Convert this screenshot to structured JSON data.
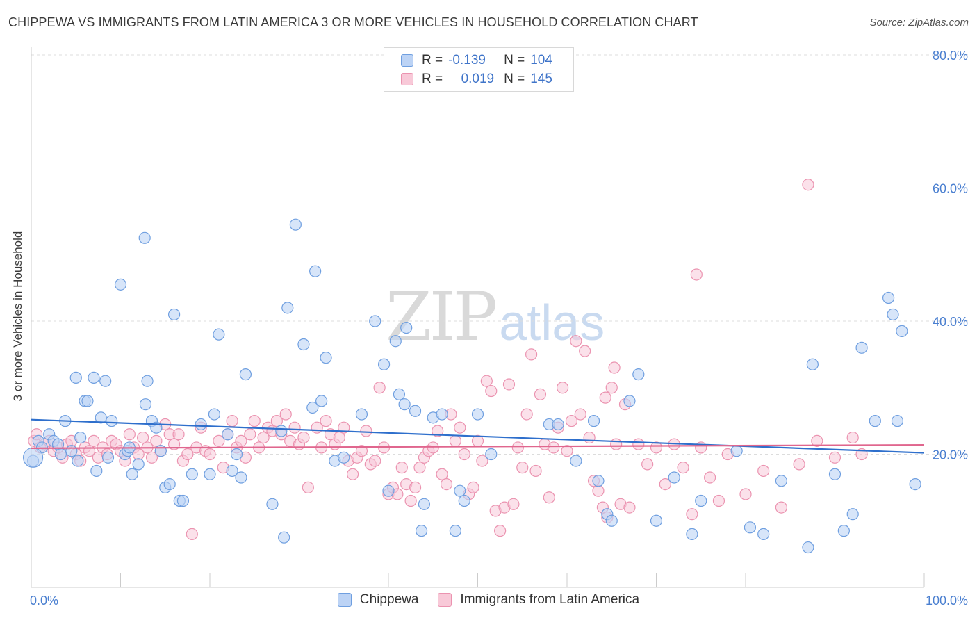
{
  "header": {
    "title": "CHIPPEWA VS IMMIGRANTS FROM LATIN AMERICA 3 OR MORE VEHICLES IN HOUSEHOLD CORRELATION CHART",
    "source": "Source: ZipAtlas.com"
  },
  "watermark": {
    "part1": "ZIP",
    "part2": "atlas"
  },
  "legend": {
    "rows": [
      {
        "r_label": "R =",
        "r_value": "-0.139",
        "n_label": "N =",
        "n_value": "104"
      },
      {
        "r_label": "R =",
        "r_value": "0.019",
        "n_label": "N =",
        "n_value": "145"
      }
    ]
  },
  "bottom_legend": {
    "items": [
      "Chippewa",
      "Immigrants from Latin America"
    ]
  },
  "colors": {
    "series_a_fill": "#bcd3f5",
    "series_a_stroke": "#6f9fe0",
    "series_a_line": "#2e6fcc",
    "series_b_fill": "#f8c9d8",
    "series_b_stroke": "#eb93b0",
    "series_b_line": "#e0668e",
    "tick": "#4a7fd0",
    "grid": "#dcdcdc"
  },
  "chart_data": {
    "type": "scatter",
    "title": "CHIPPEWA VS IMMIGRANTS FROM LATIN AMERICA 3 OR MORE VEHICLES IN HOUSEHOLD CORRELATION CHART",
    "xlabel": "",
    "ylabel": "3 or more Vehicles in Household",
    "xlim": [
      0,
      100
    ],
    "ylim": [
      0,
      80
    ],
    "x_tick_labels": [
      "0.0%",
      "100.0%"
    ],
    "y_ticks": [
      20,
      40,
      60,
      80
    ],
    "y_tick_labels": [
      "20.0%",
      "40.0%",
      "60.0%",
      "80.0%"
    ],
    "grid": "horizontal dashed",
    "legend_position": "top-center",
    "series": [
      {
        "name": "Chippewa",
        "trend": {
          "x": [
            0,
            100
          ],
          "y": [
            25.2,
            20.2
          ]
        },
        "points": [
          [
            0.2,
            19
          ],
          [
            0.8,
            22
          ],
          [
            1.2,
            21
          ],
          [
            2,
            23
          ],
          [
            2.5,
            22
          ],
          [
            3,
            21.5
          ],
          [
            3.3,
            20
          ],
          [
            4.5,
            20.5
          ],
          [
            5.2,
            19
          ],
          [
            3.8,
            25
          ],
          [
            5,
            31.5
          ],
          [
            5.5,
            22.5
          ],
          [
            6,
            28
          ],
          [
            6.3,
            28
          ],
          [
            7,
            31.5
          ],
          [
            7.3,
            17.5
          ],
          [
            7.8,
            25.5
          ],
          [
            8.3,
            31
          ],
          [
            8.6,
            19.5
          ],
          [
            9,
            25
          ],
          [
            10,
            45.5
          ],
          [
            10.5,
            20
          ],
          [
            10.8,
            20.5
          ],
          [
            11,
            21
          ],
          [
            11.3,
            17
          ],
          [
            12,
            18.5
          ],
          [
            12.7,
            52.5
          ],
          [
            12.8,
            27.5
          ],
          [
            13,
            31
          ],
          [
            13.5,
            25
          ],
          [
            14,
            24
          ],
          [
            14.5,
            20.5
          ],
          [
            15,
            15
          ],
          [
            15.5,
            15.5
          ],
          [
            16,
            41
          ],
          [
            16.6,
            13
          ],
          [
            17,
            13
          ],
          [
            18,
            17
          ],
          [
            19,
            24.5
          ],
          [
            20,
            17
          ],
          [
            20.5,
            26
          ],
          [
            21,
            38
          ],
          [
            22,
            23
          ],
          [
            22.5,
            17.5
          ],
          [
            23,
            20
          ],
          [
            23.5,
            16.5
          ],
          [
            24,
            32
          ],
          [
            27,
            12.5
          ],
          [
            28,
            23.5
          ],
          [
            28.3,
            7.5
          ],
          [
            28.7,
            42
          ],
          [
            29.6,
            54.5
          ],
          [
            30.5,
            36.5
          ],
          [
            31.5,
            27
          ],
          [
            31.8,
            47.5
          ],
          [
            32.5,
            28
          ],
          [
            33,
            34.5
          ],
          [
            34,
            19
          ],
          [
            35,
            19.5
          ],
          [
            37,
            26
          ],
          [
            38.5,
            40
          ],
          [
            39.5,
            33.5
          ],
          [
            40,
            14.5
          ],
          [
            40.8,
            37
          ],
          [
            41.2,
            29
          ],
          [
            41.8,
            27.5
          ],
          [
            42,
            39
          ],
          [
            43,
            26.5
          ],
          [
            43.7,
            8.5
          ],
          [
            44,
            12.5
          ],
          [
            45,
            25.5
          ],
          [
            46,
            26
          ],
          [
            47.5,
            8.5
          ],
          [
            48,
            14.5
          ],
          [
            48.5,
            13
          ],
          [
            50,
            26
          ],
          [
            51.5,
            20
          ],
          [
            58,
            24.5
          ],
          [
            59,
            24.5
          ],
          [
            61,
            19
          ],
          [
            63,
            25
          ],
          [
            63.5,
            16
          ],
          [
            64.5,
            11
          ],
          [
            65,
            10
          ],
          [
            67,
            28
          ],
          [
            68,
            32
          ],
          [
            70,
            10
          ],
          [
            72,
            16.5
          ],
          [
            74,
            8
          ],
          [
            75,
            13
          ],
          [
            79,
            20.5
          ],
          [
            80.5,
            9
          ],
          [
            82,
            8
          ],
          [
            84,
            16
          ],
          [
            87,
            6
          ],
          [
            87.5,
            33.5
          ],
          [
            90,
            17
          ],
          [
            91,
            8.5
          ],
          [
            92,
            11
          ],
          [
            93,
            36
          ],
          [
            94.5,
            25
          ],
          [
            96,
            43.5
          ],
          [
            96.5,
            41
          ],
          [
            97,
            25
          ],
          [
            97.5,
            38.5
          ],
          [
            99,
            15.5
          ]
        ]
      },
      {
        "name": "Immigrants from Latin America",
        "trend": {
          "x": [
            0,
            100
          ],
          "y": [
            20.9,
            21.4
          ]
        },
        "points": [
          [
            0.3,
            22
          ],
          [
            0.6,
            23
          ],
          [
            1,
            21
          ],
          [
            1.5,
            21.5
          ],
          [
            2,
            22
          ],
          [
            2.5,
            20.5
          ],
          [
            3,
            21
          ],
          [
            3.5,
            19.5
          ],
          [
            4,
            21.5
          ],
          [
            4.5,
            22
          ],
          [
            5,
            20
          ],
          [
            5.5,
            19
          ],
          [
            6,
            21
          ],
          [
            6.5,
            20.5
          ],
          [
            7,
            22
          ],
          [
            7.5,
            19.5
          ],
          [
            8,
            21
          ],
          [
            8.5,
            20
          ],
          [
            9,
            22
          ],
          [
            9.5,
            21.5
          ],
          [
            10,
            20.5
          ],
          [
            10.5,
            19
          ],
          [
            11,
            23
          ],
          [
            11.5,
            21
          ],
          [
            12,
            20
          ],
          [
            12.5,
            22.5
          ],
          [
            13,
            21
          ],
          [
            13.5,
            19.5
          ],
          [
            14,
            22
          ],
          [
            14.5,
            20.5
          ],
          [
            15,
            24.5
          ],
          [
            15.5,
            23
          ],
          [
            16,
            21.5
          ],
          [
            16.5,
            23
          ],
          [
            17,
            19
          ],
          [
            17.5,
            20
          ],
          [
            18,
            8
          ],
          [
            18.5,
            21
          ],
          [
            19,
            24
          ],
          [
            19.5,
            20.5
          ],
          [
            20,
            20
          ],
          [
            21,
            22
          ],
          [
            21.5,
            18
          ],
          [
            22,
            23
          ],
          [
            22.5,
            25
          ],
          [
            23,
            21
          ],
          [
            23.5,
            22
          ],
          [
            24,
            19.5
          ],
          [
            24.5,
            23
          ],
          [
            25,
            25
          ],
          [
            25.5,
            21
          ],
          [
            26,
            22.5
          ],
          [
            26.5,
            24
          ],
          [
            27,
            23.5
          ],
          [
            27.5,
            25
          ],
          [
            28,
            23
          ],
          [
            28.5,
            26
          ],
          [
            29,
            22
          ],
          [
            29.5,
            24
          ],
          [
            30,
            21.5
          ],
          [
            30.5,
            22.5
          ],
          [
            31,
            15
          ],
          [
            32,
            24
          ],
          [
            32.5,
            21
          ],
          [
            33,
            25
          ],
          [
            33.5,
            23
          ],
          [
            34,
            21.5
          ],
          [
            34.5,
            22.5
          ],
          [
            35,
            24
          ],
          [
            35.5,
            19
          ],
          [
            36,
            17
          ],
          [
            36.5,
            19.5
          ],
          [
            37,
            20.5
          ],
          [
            37.5,
            23.5
          ],
          [
            38,
            18.5
          ],
          [
            38.5,
            19
          ],
          [
            39,
            30
          ],
          [
            39.5,
            21
          ],
          [
            40,
            14
          ],
          [
            40.5,
            15
          ],
          [
            41,
            14
          ],
          [
            41.5,
            18
          ],
          [
            42,
            15.5
          ],
          [
            42.5,
            13
          ],
          [
            43,
            15
          ],
          [
            43.5,
            18
          ],
          [
            44,
            19.5
          ],
          [
            44.5,
            20.5
          ],
          [
            45,
            21
          ],
          [
            45.5,
            23.5
          ],
          [
            46,
            17
          ],
          [
            46.5,
            15.5
          ],
          [
            47,
            26
          ],
          [
            47.5,
            22
          ],
          [
            48,
            24
          ],
          [
            48.5,
            20
          ],
          [
            49,
            14
          ],
          [
            49.5,
            15
          ],
          [
            50,
            22
          ],
          [
            50.5,
            19
          ],
          [
            51,
            31
          ],
          [
            51.5,
            29.5
          ],
          [
            52,
            11.5
          ],
          [
            52.5,
            8.5
          ],
          [
            53,
            12
          ],
          [
            53.5,
            30.5
          ],
          [
            54,
            12.5
          ],
          [
            54.5,
            21
          ],
          [
            55,
            18
          ],
          [
            55.5,
            26
          ],
          [
            56,
            35
          ],
          [
            56.5,
            17.5
          ],
          [
            57,
            29
          ],
          [
            57.5,
            21.5
          ],
          [
            58,
            13.5
          ],
          [
            58.5,
            21
          ],
          [
            59,
            24
          ],
          [
            59.5,
            30
          ],
          [
            60,
            20.5
          ],
          [
            60.5,
            25
          ],
          [
            61,
            37
          ],
          [
            61.5,
            26
          ],
          [
            62,
            35.5
          ],
          [
            62.5,
            22.5
          ],
          [
            63,
            16
          ],
          [
            63.5,
            14.5
          ],
          [
            64,
            12
          ],
          [
            64.5,
            10.5
          ],
          [
            65,
            30
          ],
          [
            65.5,
            21.5
          ],
          [
            66,
            12.5
          ],
          [
            67,
            12
          ],
          [
            68,
            21.5
          ],
          [
            69,
            18.5
          ],
          [
            70,
            21
          ],
          [
            71,
            15.5
          ],
          [
            72,
            21.5
          ],
          [
            73,
            18
          ],
          [
            74,
            11
          ],
          [
            75,
            21
          ],
          [
            76,
            16.5
          ],
          [
            77,
            13
          ],
          [
            78,
            20
          ],
          [
            80,
            14
          ],
          [
            82,
            17.5
          ],
          [
            84,
            12
          ],
          [
            86,
            18.5
          ],
          [
            87,
            60.5
          ],
          [
            88,
            22
          ],
          [
            90,
            19.5
          ],
          [
            92,
            22.5
          ],
          [
            93,
            20
          ],
          [
            74.5,
            47
          ],
          [
            65.3,
            33
          ],
          [
            64.3,
            28.5
          ],
          [
            66.5,
            27.5
          ]
        ]
      }
    ]
  }
}
